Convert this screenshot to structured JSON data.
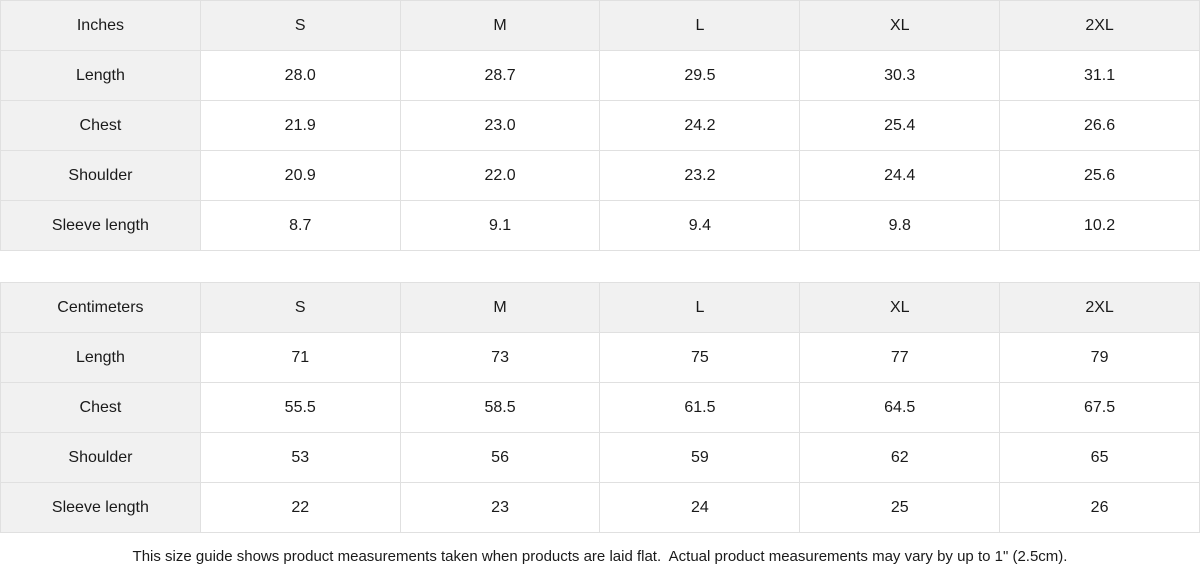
{
  "chart_data": [
    {
      "type": "table",
      "unit_label": "Inches",
      "columns": [
        "S",
        "M",
        "L",
        "XL",
        "2XL"
      ],
      "rows": [
        {
          "label": "Length",
          "values": [
            "28.0",
            "28.7",
            "29.5",
            "30.3",
            "31.1"
          ]
        },
        {
          "label": "Chest",
          "values": [
            "21.9",
            "23.0",
            "24.2",
            "25.4",
            "26.6"
          ]
        },
        {
          "label": "Shoulder",
          "values": [
            "20.9",
            "22.0",
            "23.2",
            "24.4",
            "25.6"
          ]
        },
        {
          "label": "Sleeve length",
          "values": [
            "8.7",
            "9.1",
            "9.4",
            "9.8",
            "10.2"
          ]
        }
      ]
    },
    {
      "type": "table",
      "unit_label": "Centimeters",
      "columns": [
        "S",
        "M",
        "L",
        "XL",
        "2XL"
      ],
      "rows": [
        {
          "label": "Length",
          "values": [
            "71",
            "73",
            "75",
            "77",
            "79"
          ]
        },
        {
          "label": "Chest",
          "values": [
            "55.5",
            "58.5",
            "61.5",
            "64.5",
            "67.5"
          ]
        },
        {
          "label": "Shoulder",
          "values": [
            "53",
            "56",
            "59",
            "62",
            "65"
          ]
        },
        {
          "label": "Sleeve length",
          "values": [
            "22",
            "23",
            "24",
            "25",
            "26"
          ]
        }
      ]
    }
  ],
  "footer": {
    "note": "This size guide shows product measurements taken when products are laid flat.  Actual product measurements may vary by up to 1\" (2.5cm)."
  },
  "colors": {
    "header_bg": "#f1f1f1",
    "border": "#e0e0e0",
    "text": "#1a1a1a",
    "page_bg": "#ffffff"
  }
}
